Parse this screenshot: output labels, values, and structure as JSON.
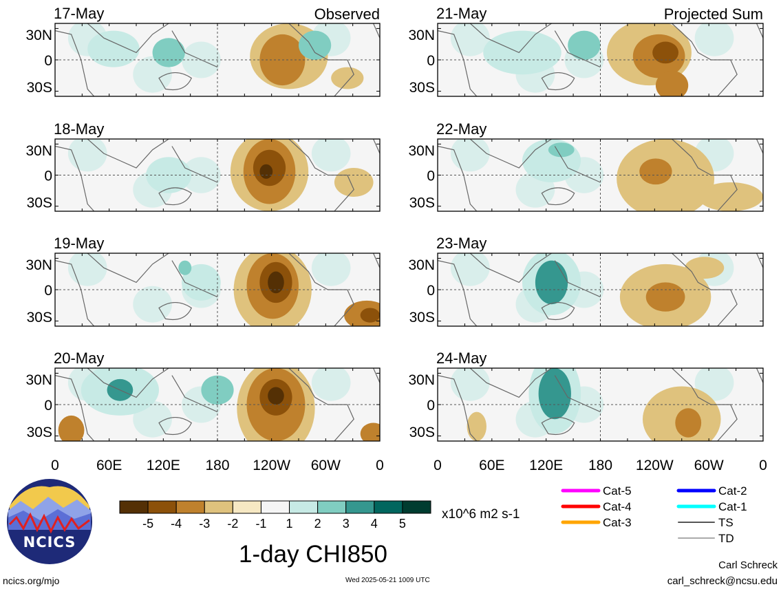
{
  "left_column": {
    "label": "Observed",
    "dates": [
      "17-May",
      "18-May",
      "19-May",
      "20-May"
    ]
  },
  "right_column": {
    "label": "Projected Sum",
    "dates": [
      "21-May",
      "22-May",
      "23-May",
      "24-May"
    ]
  },
  "lat_labels": [
    "30N",
    "0",
    "30S"
  ],
  "lon_labels": [
    "0",
    "60E",
    "120E",
    "180",
    "120W",
    "60W",
    "0"
  ],
  "colorbar": {
    "tick_labels": [
      "-5",
      "-4",
      "-3",
      "-2",
      "-1",
      "1",
      "2",
      "3",
      "4",
      "5"
    ],
    "colors": [
      "#543005",
      "#8c510a",
      "#bf812d",
      "#dfc27d",
      "#f6e8c3",
      "#f5f5f5",
      "#c7eae5",
      "#80cdc1",
      "#35978f",
      "#01665e",
      "#003c30"
    ],
    "units": "x10^6 m2 s-1"
  },
  "legend": {
    "items": [
      {
        "label": "Cat-5",
        "color": "#ff00ff"
      },
      {
        "label": "Cat-4",
        "color": "#ff0000"
      },
      {
        "label": "Cat-3",
        "color": "#ffa500"
      },
      {
        "label": "Cat-2",
        "color": "#0000ff"
      },
      {
        "label": "Cat-1",
        "color": "#00ffff"
      },
      {
        "label": "TS",
        "color": "#555555"
      },
      {
        "label": "TD",
        "color": "#aaaaaa"
      }
    ]
  },
  "main_title": "1-day CHI850",
  "logo": {
    "text": "NCICS"
  },
  "footer": {
    "url": "ncics.org/mjo",
    "timestamp": "Wed 2025-05-21 1009 UTC",
    "author": "Carl Schreck",
    "email": "carl_schreck@ncsu.edu"
  }
}
